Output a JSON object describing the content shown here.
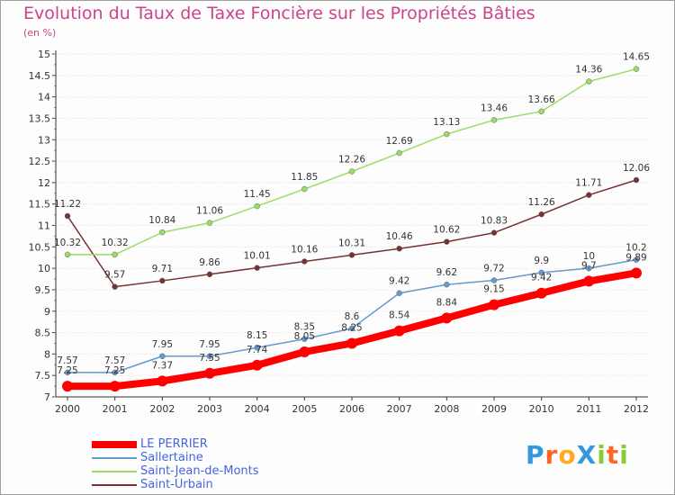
{
  "title": "Evolution du Taux de Taxe Foncière sur les Propriétés Bâties",
  "unit_label": "(en %)",
  "logo_text": "ProXiti",
  "colors": {
    "title": "#cc4488",
    "legend_text": "#4466dd",
    "axis": "#333333",
    "grid": "#dddddd"
  },
  "chart_data": {
    "type": "line",
    "title": "Evolution du Taux de Taxe Foncière sur les Propriétés Bâties",
    "ylabel": "(en %)",
    "xlabel": "",
    "x": [
      "2000",
      "2001",
      "2002",
      "2003",
      "2004",
      "2005",
      "2006",
      "2007",
      "2008",
      "2009",
      "2010",
      "2011",
      "2012"
    ],
    "ylim": [
      7,
      15
    ],
    "yticks": [
      "7",
      "7.5",
      "8",
      "8.5",
      "9",
      "9.5",
      "10",
      "10.5",
      "11",
      "11.5",
      "12",
      "12.5",
      "13",
      "13.5",
      "14",
      "14.5",
      "15"
    ],
    "grid": true,
    "legend_position": "bottom-left",
    "series": [
      {
        "name": "LE PERRIER",
        "color": "#ff0000",
        "width": 8,
        "marker": 6,
        "values": [
          7.25,
          7.25,
          7.37,
          7.55,
          7.74,
          8.05,
          8.25,
          8.54,
          8.84,
          9.15,
          9.42,
          9.7,
          9.89
        ],
        "labels": [
          "7.25",
          "7.25",
          "7.37",
          "7.55",
          "7.74",
          "8.05",
          "8.25",
          "8.54",
          "8.84",
          "9.15",
          "9.42",
          "9.7",
          "9.89"
        ]
      },
      {
        "name": "Sallertaine",
        "color": "#6699cc",
        "width": 1.5,
        "marker": 3,
        "values": [
          7.57,
          7.57,
          7.95,
          7.95,
          8.15,
          8.35,
          8.6,
          9.42,
          9.62,
          9.72,
          9.9,
          10,
          10.2
        ],
        "labels": [
          "7.57",
          "7.57",
          "7.95",
          "7.95",
          "8.15",
          "8.35",
          "8.6",
          "9.42",
          "9.62",
          "9.72",
          "9.9",
          "10",
          "10.2"
        ]
      },
      {
        "name": "Saint-Jean-de-Monts",
        "color": "#99dd66",
        "width": 1.5,
        "marker": 3,
        "values": [
          10.32,
          10.32,
          10.84,
          11.06,
          11.45,
          11.85,
          12.26,
          12.69,
          13.13,
          13.46,
          13.66,
          14.36,
          14.65
        ],
        "labels": [
          "10.32",
          "10.32",
          "10.84",
          "11.06",
          "11.45",
          "11.85",
          "12.26",
          "12.69",
          "13.13",
          "13.46",
          "13.66",
          "14.36",
          "14.65"
        ]
      },
      {
        "name": "Saint-Urbain",
        "color": "#773333",
        "width": 1.5,
        "marker": 3,
        "values": [
          11.22,
          9.57,
          9.71,
          9.86,
          10.01,
          10.16,
          10.31,
          10.46,
          10.62,
          10.83,
          11.26,
          11.71,
          12.06
        ],
        "labels": [
          "11.22",
          "9.57",
          "9.71",
          "9.86",
          "10.01",
          "10.16",
          "10.31",
          "10.46",
          "10.62",
          "10.83",
          "11.26",
          "11.71",
          "12.06"
        ]
      }
    ]
  },
  "legend": [
    {
      "label": "LE PERRIER",
      "color": "#ff0000"
    },
    {
      "label": "Sallertaine",
      "color": "#6699cc"
    },
    {
      "label": "Saint-Jean-de-Monts",
      "color": "#99dd66"
    },
    {
      "label": "Saint-Urbain",
      "color": "#773333"
    }
  ]
}
